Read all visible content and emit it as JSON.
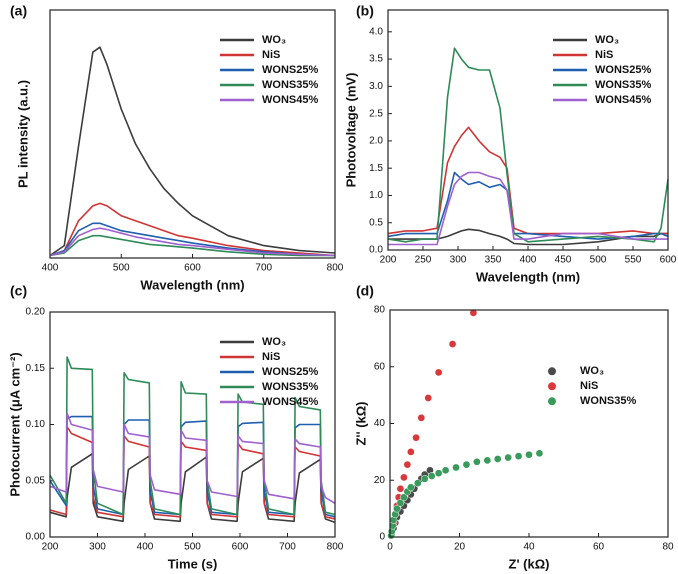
{
  "chart_data": [
    {
      "type": "line",
      "panel_label": "(a)",
      "x_label": "Wavelength (nm)",
      "y_label": "PL intensity (a.u.)",
      "x": [
        400,
        420,
        440,
        460,
        470,
        480,
        500,
        520,
        540,
        560,
        580,
        600,
        650,
        700,
        750,
        800
      ],
      "xlim": [
        400,
        800
      ],
      "xticks": [
        400,
        500,
        600,
        700,
        800
      ],
      "ylim": [
        0,
        1
      ],
      "legend": "upper right",
      "series": [
        {
          "name": "WO₃",
          "color": "#3c3c3c",
          "values": [
            0.01,
            0.05,
            0.45,
            0.83,
            0.85,
            0.78,
            0.6,
            0.46,
            0.36,
            0.28,
            0.22,
            0.17,
            0.09,
            0.05,
            0.03,
            0.02
          ]
        },
        {
          "name": "NiS",
          "color": "#d03434",
          "values": [
            0.01,
            0.03,
            0.15,
            0.21,
            0.22,
            0.21,
            0.17,
            0.15,
            0.13,
            0.11,
            0.09,
            0.08,
            0.05,
            0.03,
            0.02,
            0.01
          ]
        },
        {
          "name": "WONS25%",
          "color": "#1f5fb0",
          "values": [
            0.01,
            0.03,
            0.11,
            0.14,
            0.14,
            0.13,
            0.11,
            0.1,
            0.09,
            0.08,
            0.07,
            0.06,
            0.04,
            0.025,
            0.015,
            0.01
          ]
        },
        {
          "name": "WONS35%",
          "color": "#2e8b57",
          "values": [
            0.01,
            0.02,
            0.07,
            0.09,
            0.09,
            0.085,
            0.075,
            0.065,
            0.055,
            0.05,
            0.045,
            0.04,
            0.025,
            0.015,
            0.01,
            0.01
          ]
        },
        {
          "name": "WONS45%",
          "color": "#a060d0",
          "values": [
            0.01,
            0.025,
            0.09,
            0.115,
            0.12,
            0.115,
            0.1,
            0.085,
            0.075,
            0.065,
            0.055,
            0.05,
            0.035,
            0.02,
            0.015,
            0.01
          ]
        }
      ]
    },
    {
      "type": "line",
      "panel_label": "(b)",
      "x_label": "Wavelength (nm)",
      "y_label": "Photovoltage (mV)",
      "x": [
        200,
        225,
        250,
        270,
        285,
        295,
        305,
        315,
        330,
        345,
        360,
        370,
        380,
        400,
        450,
        500,
        550,
        580,
        590,
        600
      ],
      "xlim": [
        200,
        600
      ],
      "xticks": [
        200,
        250,
        300,
        350,
        400,
        450,
        500,
        550,
        600
      ],
      "ylim": [
        0,
        4.4
      ],
      "yticks": [
        {
          "value": 0,
          "label": "0.0"
        },
        0.5,
        {
          "value": 1,
          "label": "1.0"
        },
        1.5,
        {
          "value": 2,
          "label": "2.0"
        },
        2.5,
        {
          "value": 3,
          "label": "3.0"
        },
        3.5,
        {
          "value": 4,
          "label": "4.0"
        }
      ],
      "legend": "upper right",
      "series": [
        {
          "name": "WO₃",
          "color": "#3c3c3c",
          "values": [
            0.2,
            0.2,
            0.2,
            0.2,
            0.25,
            0.3,
            0.35,
            0.38,
            0.36,
            0.3,
            0.25,
            0.2,
            0.12,
            0.1,
            0.1,
            0.15,
            0.25,
            0.25,
            0.3,
            0.3
          ]
        },
        {
          "name": "NiS",
          "color": "#d03434",
          "values": [
            0.3,
            0.35,
            0.35,
            0.4,
            1.6,
            1.9,
            2.1,
            2.25,
            2.0,
            1.8,
            1.7,
            1.5,
            0.4,
            0.3,
            0.3,
            0.3,
            0.35,
            0.3,
            0.3,
            0.3
          ]
        },
        {
          "name": "WONS25%",
          "color": "#1f5fb0",
          "values": [
            0.25,
            0.3,
            0.3,
            0.3,
            0.9,
            1.42,
            1.3,
            1.2,
            1.25,
            1.15,
            1.2,
            1.1,
            0.3,
            0.3,
            0.25,
            0.2,
            0.25,
            0.3,
            0.3,
            0.25
          ]
        },
        {
          "name": "WONS35%",
          "color": "#2e8b57",
          "values": [
            0.2,
            0.15,
            0.2,
            0.2,
            2.8,
            3.7,
            3.5,
            3.35,
            3.3,
            3.3,
            2.6,
            1.4,
            0.3,
            0.15,
            0.2,
            0.25,
            0.2,
            0.15,
            0.4,
            1.3
          ]
        },
        {
          "name": "WONS45%",
          "color": "#a060d0",
          "values": [
            0.1,
            0.1,
            0.1,
            0.1,
            0.8,
            1.2,
            1.35,
            1.42,
            1.42,
            1.35,
            1.3,
            1.1,
            0.2,
            0.2,
            0.3,
            0.3,
            0.2,
            0.2,
            0.2,
            0.2
          ]
        }
      ]
    },
    {
      "type": "line",
      "panel_label": "(c)",
      "x_label": "Time (s)",
      "y_label": "Photocurrent (μA cm⁻²)",
      "x": [
        200,
        234,
        236,
        245,
        289,
        291,
        300,
        354,
        356,
        365,
        409,
        411,
        420,
        474,
        476,
        485,
        529,
        531,
        540,
        594,
        596,
        605,
        649,
        651,
        660,
        714,
        716,
        725,
        769,
        771,
        780,
        800
      ],
      "xlim": [
        200,
        800
      ],
      "xticks": [
        200,
        300,
        400,
        500,
        600,
        700,
        800
      ],
      "ylim": [
        0,
        0.2
      ],
      "yticks": [
        {
          "value": 0,
          "label": "0.00"
        },
        0.05,
        {
          "value": 0.1,
          "label": "0.10"
        },
        0.15,
        {
          "value": 0.2,
          "label": "0.20"
        }
      ],
      "legend": "upper right",
      "series": [
        {
          "name": "WO₃",
          "color": "#3c3c3c",
          "values": [
            0.022,
            0.018,
            0.035,
            0.062,
            0.074,
            0.03,
            0.018,
            0.014,
            0.03,
            0.06,
            0.072,
            0.03,
            0.016,
            0.014,
            0.03,
            0.058,
            0.071,
            0.03,
            0.016,
            0.014,
            0.03,
            0.058,
            0.07,
            0.03,
            0.016,
            0.014,
            0.03,
            0.057,
            0.069,
            0.03,
            0.016,
            0.013
          ]
        },
        {
          "name": "NiS",
          "color": "#d03434",
          "values": [
            0.024,
            0.02,
            0.098,
            0.092,
            0.084,
            0.035,
            0.022,
            0.018,
            0.09,
            0.085,
            0.08,
            0.03,
            0.02,
            0.018,
            0.085,
            0.08,
            0.077,
            0.03,
            0.02,
            0.018,
            0.083,
            0.078,
            0.074,
            0.03,
            0.02,
            0.018,
            0.08,
            0.076,
            0.072,
            0.03,
            0.018,
            0.016
          ]
        },
        {
          "name": "WONS25%",
          "color": "#1f5fb0",
          "values": [
            0.05,
            0.028,
            0.105,
            0.107,
            0.107,
            0.045,
            0.025,
            0.02,
            0.1,
            0.104,
            0.104,
            0.04,
            0.022,
            0.02,
            0.098,
            0.102,
            0.103,
            0.04,
            0.022,
            0.02,
            0.098,
            0.101,
            0.102,
            0.04,
            0.022,
            0.02,
            0.097,
            0.1,
            0.1,
            0.04,
            0.02,
            0.018
          ]
        },
        {
          "name": "WONS35%",
          "color": "#2e8b57",
          "values": [
            0.055,
            0.03,
            0.16,
            0.15,
            0.149,
            0.06,
            0.03,
            0.02,
            0.146,
            0.14,
            0.137,
            0.05,
            0.025,
            0.02,
            0.138,
            0.128,
            0.127,
            0.05,
            0.025,
            0.02,
            0.127,
            0.12,
            0.118,
            0.05,
            0.025,
            0.02,
            0.124,
            0.116,
            0.113,
            0.05,
            0.022,
            0.02
          ]
        },
        {
          "name": "WONS45%",
          "color": "#a060d0",
          "values": [
            0.045,
            0.04,
            0.11,
            0.1,
            0.095,
            0.06,
            0.045,
            0.04,
            0.1,
            0.092,
            0.089,
            0.055,
            0.042,
            0.038,
            0.095,
            0.088,
            0.086,
            0.05,
            0.04,
            0.036,
            0.09,
            0.085,
            0.083,
            0.05,
            0.038,
            0.034,
            0.087,
            0.083,
            0.08,
            0.045,
            0.035,
            0.03
          ]
        }
      ]
    },
    {
      "type": "scatter",
      "panel_label": "(d)",
      "x_label": "Z' (kΩ)",
      "y_label": "Z'' (kΩ)",
      "xlim": [
        0,
        80
      ],
      "xticks": [
        0,
        20,
        40,
        60,
        80
      ],
      "ylim": [
        0,
        80
      ],
      "yticks": [
        0,
        20,
        40,
        60,
        80
      ],
      "legend": "center right",
      "series": [
        {
          "name": "WO₃",
          "color": "#4a4a4a",
          "x": [
            0.5,
            1,
            1.5,
            2,
            3,
            4,
            5,
            6,
            7,
            8,
            9,
            10,
            11.5
          ],
          "values": [
            1,
            3,
            5,
            7,
            9,
            11,
            13,
            15,
            17,
            19,
            20.5,
            22,
            23.5
          ]
        },
        {
          "name": "NiS",
          "color": "#d9393b",
          "x": [
            0.5,
            1,
            1.5,
            2,
            2.5,
            3,
            4,
            5,
            6,
            7.5,
            9,
            11,
            14,
            18,
            24
          ],
          "values": [
            2,
            5,
            8,
            11,
            14,
            17,
            21,
            25.5,
            30,
            35,
            42,
            49,
            58,
            68,
            79
          ]
        },
        {
          "name": "WONS35%",
          "color": "#3a9a5c",
          "x": [
            0.3,
            0.5,
            0.8,
            1,
            1.5,
            2,
            3,
            4,
            5,
            6,
            8,
            10,
            12,
            14,
            16,
            19,
            22,
            25,
            28,
            31,
            34,
            37,
            40,
            43
          ],
          "values": [
            0.5,
            2,
            4,
            6,
            8,
            10,
            12,
            14,
            16,
            17.5,
            19,
            20.5,
            21.5,
            22.5,
            23.5,
            24.5,
            25.5,
            26.5,
            27,
            27.5,
            28,
            28.5,
            29,
            29.5
          ]
        }
      ]
    }
  ]
}
